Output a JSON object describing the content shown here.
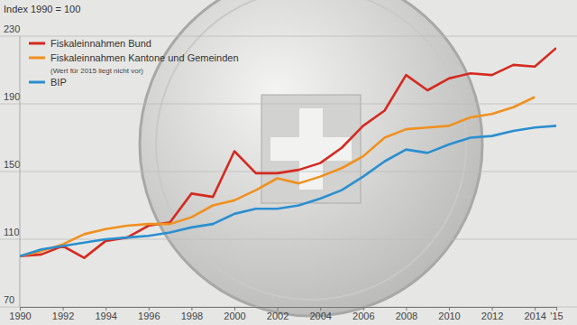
{
  "chart_data": {
    "type": "line",
    "y_label": "Index 1990 = 100",
    "annotations": [
      "(Wert für 2015 liegt nicht vor)"
    ],
    "x": [
      1990,
      1991,
      1992,
      1993,
      1994,
      1995,
      1996,
      1997,
      1998,
      1999,
      2000,
      2001,
      2002,
      2003,
      2004,
      2005,
      2006,
      2007,
      2008,
      2009,
      2010,
      2011,
      2012,
      2013,
      2014,
      2015
    ],
    "series": [
      {
        "name": "Fiskaleinnahmen Bund",
        "color": "#d42a20",
        "values": [
          100,
          101,
          106,
          99,
          109,
          111,
          118,
          120,
          137,
          135,
          162,
          149,
          149,
          151,
          155,
          164,
          177,
          186,
          207,
          198,
          205,
          208,
          207,
          213,
          212,
          223
        ]
      },
      {
        "name": "Fiskaleinnahmen Kantone und Gemeinden",
        "color": "#f0901e",
        "values": [
          100,
          103,
          107,
          113,
          116,
          118,
          119,
          119,
          123,
          130,
          133,
          139,
          146,
          143,
          147,
          152,
          159,
          170,
          175,
          176,
          177,
          182,
          184,
          188,
          194,
          null
        ]
      },
      {
        "name": "BIP",
        "color": "#2a8fd0",
        "values": [
          100,
          104,
          106,
          108,
          110,
          111,
          112,
          114,
          117,
          119,
          125,
          128,
          128,
          130,
          134,
          139,
          147,
          156,
          163,
          161,
          166,
          170,
          171,
          174,
          176,
          177
        ]
      }
    ],
    "xlim": [
      1990,
      2015
    ],
    "xticks": [
      1990,
      1992,
      1994,
      1996,
      1998,
      2000,
      2002,
      2004,
      2006,
      2008,
      2010,
      2012,
      2014,
      {
        "value": 2015,
        "label": "'15"
      }
    ],
    "ylim": [
      70,
      230
    ],
    "yticks": [
      70,
      110,
      150,
      190,
      230
    ],
    "grid": true,
    "legend": "upper left"
  }
}
